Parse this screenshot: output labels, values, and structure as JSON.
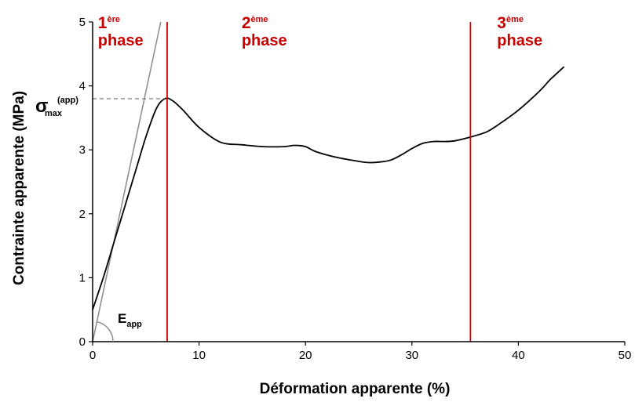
{
  "colors": {
    "axis": "#000000",
    "curve": "#000000",
    "tangent": "#909090",
    "phase": "#c80000",
    "dashed": "#707070"
  },
  "chart_data": {
    "type": "line",
    "xlabel": "Déformation apparente (%)",
    "ylabel": "Contrainte apparente (MPa)",
    "xlim": [
      0,
      50
    ],
    "ylim": [
      0,
      5
    ],
    "x_ticks": [
      0,
      10,
      20,
      30,
      40,
      50
    ],
    "y_ticks": [
      0,
      1,
      2,
      3,
      4,
      5
    ],
    "grid": false,
    "series": [
      {
        "x": [
          0,
          1,
          2,
          3,
          4,
          5,
          6,
          6.8,
          7.5,
          8.5,
          10,
          12,
          14,
          16,
          18,
          19,
          20,
          21,
          23,
          25,
          26,
          27,
          28,
          29,
          30,
          31,
          32,
          33,
          34,
          35.5,
          37,
          38,
          40,
          42,
          43,
          44.3
        ],
        "y": [
          0.5,
          1.0,
          1.55,
          2.1,
          2.65,
          3.2,
          3.65,
          3.8,
          3.77,
          3.62,
          3.35,
          3.12,
          3.08,
          3.05,
          3.05,
          3.07,
          3.05,
          2.97,
          2.88,
          2.82,
          2.8,
          2.81,
          2.84,
          2.92,
          3.02,
          3.1,
          3.13,
          3.13,
          3.14,
          3.2,
          3.28,
          3.38,
          3.62,
          3.92,
          4.1,
          4.3
        ]
      }
    ],
    "tangent_line": {
      "x": [
        0,
        6.4
      ],
      "y": [
        0,
        5
      ]
    },
    "phase_boundaries": [
      7,
      35.5
    ],
    "phases": [
      {
        "number": "1",
        "suffix": "ère",
        "word": "phase",
        "x": 0.5
      },
      {
        "number": "2",
        "suffix": "ème",
        "word": "phase",
        "x": 14
      },
      {
        "number": "3",
        "suffix": "ème",
        "word": "phase",
        "x": 38
      }
    ],
    "sigma_max": {
      "y": 3.8,
      "x": 6.8,
      "symbol": "σ",
      "subscript": "max",
      "superscript": "(app)"
    },
    "modulus_label": {
      "main": "E",
      "subscript": "app"
    }
  }
}
